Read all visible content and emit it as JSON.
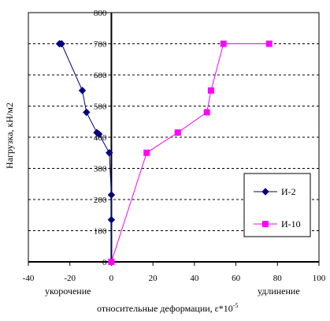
{
  "chart_data": {
    "type": "line",
    "ylabel": "Нагрузка, кН/м2",
    "xlabel_main": "относительные деформации, ε*10",
    "xlabel_exp": "-5",
    "xlabel_left": "укорочение",
    "xlabel_right": "удлинение",
    "xlim": [
      -40,
      100
    ],
    "ylim": [
      0,
      800
    ],
    "x_ticks": [
      -40,
      -20,
      0,
      20,
      40,
      60,
      80,
      100
    ],
    "y_ticks": [
      0,
      100,
      200,
      300,
      400,
      500,
      600,
      700,
      800
    ],
    "grid": "horizontal dashed",
    "legend_position": "right",
    "series": [
      {
        "name": "И-2",
        "color": "#000080",
        "marker": "diamond",
        "points": [
          [
            -25,
            700
          ],
          [
            -24,
            700
          ],
          [
            -14,
            550
          ],
          [
            -12,
            480
          ],
          [
            -7,
            415
          ],
          [
            -6,
            410
          ],
          [
            -1,
            350
          ],
          [
            0,
            215
          ],
          [
            0,
            135
          ],
          [
            0,
            0
          ]
        ]
      },
      {
        "name": "И-10",
        "color": "#ff00ff",
        "marker": "square",
        "points": [
          [
            0,
            0
          ],
          [
            17,
            350
          ],
          [
            32,
            415
          ],
          [
            46,
            480
          ],
          [
            48,
            550
          ],
          [
            54,
            700
          ],
          [
            76,
            700
          ]
        ]
      }
    ]
  }
}
